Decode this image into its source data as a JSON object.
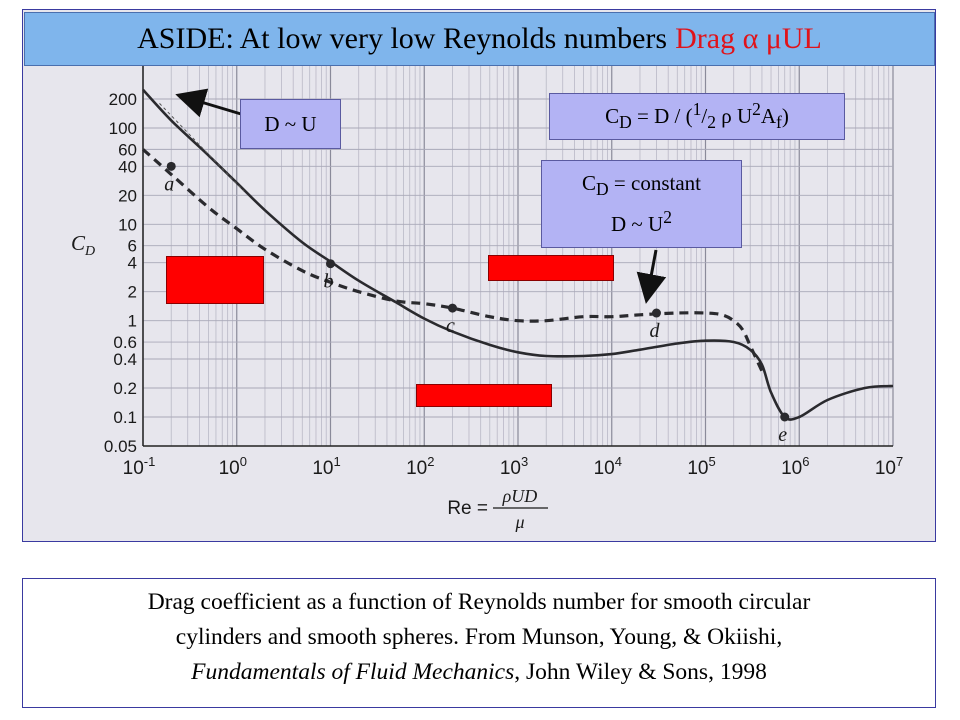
{
  "slide": {
    "title_main": "ASIDE: At low very low Reynolds numbers",
    "title_accent": "Drag α μUL",
    "colors": {
      "title_bg": "#7fb5ec",
      "accent": "#e0131a",
      "label_bg": "#b3b3f4",
      "redaction": "#ff0000"
    },
    "annotations": {
      "d_u": "D ~ U",
      "cd_formula": "CD = D / (1/2 ρ U2Af)",
      "cd_const_line1": "CD = constant",
      "cd_const_line2": "D ~ U2"
    },
    "caption": {
      "line1": "Drag coefficient as a function of Reynolds number for smooth circular",
      "line2": "cylinders and smooth spheres. From Munson, Young, & Okiishi,",
      "book": "Fundamentals of Fluid Mechanics",
      "tail": ", John Wiley & Sons, 1998"
    }
  },
  "chart_data": {
    "type": "line",
    "x_scale": "log",
    "y_scale": "log",
    "xlim": [
      0.1,
      10000000
    ],
    "ylim": [
      0.05,
      400
    ],
    "x_ticks": [
      0.1,
      1,
      10,
      100,
      1000,
      10000,
      100000,
      1000000,
      10000000
    ],
    "x_tick_labels": [
      "10^-1",
      "10^0",
      "10^1",
      "10^2",
      "10^3",
      "10^4",
      "10^5",
      "10^6",
      "10^7"
    ],
    "y_ticks": [
      0.05,
      0.1,
      0.2,
      0.4,
      0.6,
      1,
      2,
      4,
      6,
      10,
      20,
      40,
      60,
      100,
      200
    ],
    "y_tick_labels": [
      "0.05",
      "0.1",
      "0.2",
      "0.4",
      "0.6",
      "1",
      "2",
      "4",
      "6",
      "10",
      "20",
      "40",
      "60",
      "100",
      "200"
    ],
    "ylabel": "CD",
    "xlabel": "Re = ρUD/μ",
    "grid": true,
    "series": [
      {
        "style": "solid",
        "x": [
          0.1,
          0.2,
          0.5,
          1,
          2,
          5,
          10,
          20,
          50,
          100,
          200,
          500,
          1000,
          2000,
          5000,
          10000,
          20000,
          50000,
          100000,
          200000,
          300000,
          400000,
          500000,
          700000,
          1000000,
          2000000,
          5000000,
          10000000
        ],
        "y": [
          250,
          120,
          52,
          27,
          14,
          6.5,
          4.1,
          2.6,
          1.55,
          1.05,
          0.77,
          0.56,
          0.47,
          0.43,
          0.43,
          0.45,
          0.5,
          0.58,
          0.62,
          0.6,
          0.5,
          0.35,
          0.18,
          0.1,
          0.1,
          0.15,
          0.2,
          0.21
        ]
      },
      {
        "style": "dashed",
        "x": [
          0.1,
          0.2,
          0.5,
          1,
          2,
          5,
          10,
          20,
          50,
          100,
          200,
          500,
          1000,
          2000,
          5000,
          10000,
          20000,
          50000,
          100000,
          150000,
          200000,
          250000,
          300000,
          400000
        ],
        "y": [
          60,
          33,
          15,
          9,
          5.5,
          3.3,
          2.5,
          2.0,
          1.6,
          1.5,
          1.35,
          1.1,
          1.0,
          1.0,
          1.1,
          1.1,
          1.15,
          1.2,
          1.2,
          1.15,
          1.0,
          0.8,
          0.55,
          0.3
        ]
      }
    ],
    "point_labels": [
      {
        "text": "a",
        "x": 0.2,
        "y": 40
      },
      {
        "text": "b",
        "x": 10,
        "y": 3.9
      },
      {
        "text": "c",
        "x": 200,
        "y": 1.35
      },
      {
        "text": "d",
        "x": 30000,
        "y": 1.2
      },
      {
        "text": "e",
        "x": 700000,
        "y": 0.1
      }
    ]
  }
}
